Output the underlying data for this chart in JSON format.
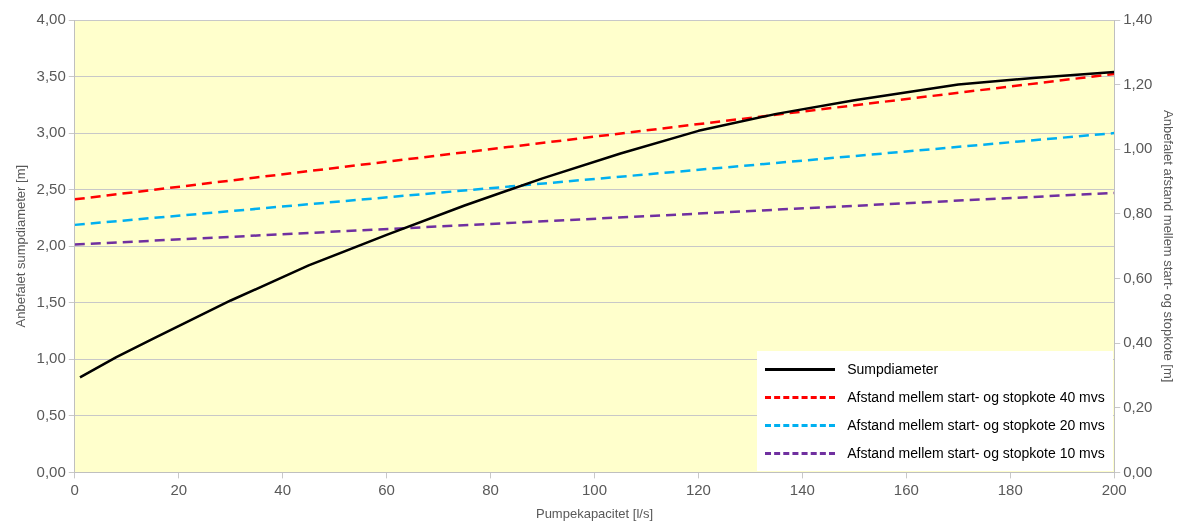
{
  "chart_data": {
    "type": "line",
    "xlabel": "Pumpekapacitet [l/s]",
    "ylabel": "Anbefalet sumpdiameter [m]",
    "y2label": "Anbefalet afstand mellem start- og stopkote [m]",
    "xlim": [
      0,
      200
    ],
    "xticks": [
      0,
      20,
      40,
      60,
      80,
      100,
      120,
      140,
      160,
      180,
      200
    ],
    "ylim": [
      0,
      4
    ],
    "yticks": [
      {
        "value": 0,
        "label": "0,00"
      },
      {
        "value": 0.5,
        "label": "0,50"
      },
      {
        "value": 1,
        "label": "1,00"
      },
      {
        "value": 1.5,
        "label": "1,50"
      },
      {
        "value": 2,
        "label": "2,00"
      },
      {
        "value": 2.5,
        "label": "2,50"
      },
      {
        "value": 3,
        "label": "3,00"
      },
      {
        "value": 3.5,
        "label": "3,50"
      },
      {
        "value": 4,
        "label": "4,00"
      }
    ],
    "y2lim": [
      0,
      1.4
    ],
    "y2ticks": [
      {
        "value": 0,
        "label": "0,00"
      },
      {
        "value": 0.2,
        "label": "0,20"
      },
      {
        "value": 0.4,
        "label": "0,40"
      },
      {
        "value": 0.6,
        "label": "0,60"
      },
      {
        "value": 0.8,
        "label": "0,80"
      },
      {
        "value": 1,
        "label": "1,00"
      },
      {
        "value": 1.2,
        "label": "1,20"
      },
      {
        "value": 1.4,
        "label": "1,40"
      }
    ],
    "grid": "y",
    "legend": "bottom right",
    "marker": "none",
    "series": [
      {
        "name": "Sumpdiameter",
        "color": "#000000",
        "line_style": "solid",
        "x": [
          1,
          8,
          15,
          30,
          45,
          60,
          75,
          90,
          105,
          120,
          135,
          150,
          170,
          185,
          200
        ],
        "values": [
          0.84,
          1.02,
          1.18,
          1.52,
          1.83,
          2.1,
          2.36,
          2.6,
          2.82,
          3.02,
          3.17,
          3.29,
          3.43,
          3.49,
          3.54
        ]
      },
      {
        "name": "Afstand mellem start- og stopkote 40 mvs",
        "color": "#ff0000",
        "line_style": "dashed",
        "axis": "y2",
        "x": [
          0,
          200
        ],
        "values": [
          0.845,
          1.233
        ]
      },
      {
        "name": "Afstand mellem start- og stopkote 20 mvs",
        "color": "#00b0f0",
        "line_style": "dashed",
        "axis": "y2",
        "x": [
          0,
          200
        ],
        "values": [
          0.766,
          1.05
        ]
      },
      {
        "name": "Afstand mellem start- og stopkote 10 mvs",
        "color": "#7030a0",
        "line_style": "dashed",
        "axis": "y2",
        "x": [
          0,
          200
        ],
        "values": [
          0.705,
          0.865
        ]
      }
    ]
  }
}
